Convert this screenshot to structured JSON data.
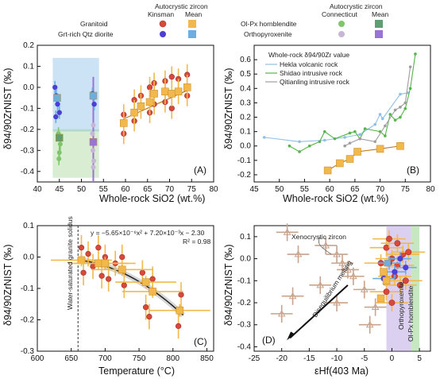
{
  "colors": {
    "granitoid_kinsman": "#d9493a",
    "granitoid_mean": "#f2b84b",
    "diorite_kinsman": "#4b3fd6",
    "diorite_mean": "#6aaee3",
    "olpx_connecticut": "#7fc56b",
    "olpx_mean": "#5f9e70",
    "opx_connecticut": "#c7b7d6",
    "opx_mean": "#9a73d6",
    "hekla": "#8fbfe6",
    "shidao": "#55b54b",
    "qitianling": "#9e9e9e",
    "fit": "#222222",
    "xenocryst": "#c9a38c"
  },
  "legend": {
    "heading_left": "Autocrystic zircon",
    "col_kinsman": "Kinsman",
    "col_mean": "Mean",
    "row_granitoid": "Granitoid",
    "row_diorite": "Grt-rich Qtz diorite",
    "heading_right": "Autocrystic zircon",
    "col_connecticut": "Connecticut",
    "col_mean2": "Mean",
    "row_olpx": "Ol-Px hornblendite",
    "row_opx": "Orthopyroxenite"
  },
  "chart_data": [
    {
      "panel": "A",
      "type": "scatter",
      "xlabel": "Whole-rock  SiO2 (wt.%)",
      "ylabel": "δ94/90ZrNIST (‰)",
      "xlim": [
        40,
        80
      ],
      "ylim": [
        -0.45,
        0.2
      ],
      "xticks": [
        40,
        45,
        50,
        55,
        60,
        65,
        70,
        75,
        80
      ],
      "yticks": [
        -0.4,
        -0.3,
        -0.2,
        -0.1,
        0.0,
        0.1,
        0.2
      ],
      "panel_label": "(A)",
      "granitoid_means": [
        {
          "x": 59.6,
          "y": -0.17
        },
        {
          "x": 62.0,
          "y": -0.12
        },
        {
          "x": 63.5,
          "y": -0.09
        },
        {
          "x": 65.5,
          "y": -0.07
        },
        {
          "x": 66.5,
          "y": -0.03
        },
        {
          "x": 69.0,
          "y": -0.02
        },
        {
          "x": 70.5,
          "y": -0.03
        },
        {
          "x": 72.0,
          "y": -0.02
        },
        {
          "x": 74.0,
          "y": 0.0
        }
      ],
      "granitoid_kinsman": [
        {
          "x": 59.6,
          "y": -0.22
        },
        {
          "x": 59.6,
          "y": -0.13
        },
        {
          "x": 62.0,
          "y": -0.16
        },
        {
          "x": 62.0,
          "y": -0.06
        },
        {
          "x": 63.5,
          "y": -0.04
        },
        {
          "x": 65.5,
          "y": 0.0
        },
        {
          "x": 65.5,
          "y": -0.12
        },
        {
          "x": 66.5,
          "y": 0.02
        },
        {
          "x": 66.5,
          "y": -0.08
        },
        {
          "x": 69.0,
          "y": 0.03
        },
        {
          "x": 69.0,
          "y": -0.07
        },
        {
          "x": 70.5,
          "y": 0.05
        },
        {
          "x": 70.5,
          "y": -0.1
        },
        {
          "x": 72.0,
          "y": 0.04
        },
        {
          "x": 74.0,
          "y": 0.06
        },
        {
          "x": 74.0,
          "y": -0.04
        }
      ],
      "diorite_means": [
        {
          "x": 44.5,
          "y": -0.05
        },
        {
          "x": 52.7,
          "y": -0.04
        }
      ],
      "diorite_kinsman": [
        {
          "x": 44.0,
          "y": 0.0
        },
        {
          "x": 44.3,
          "y": -0.04
        },
        {
          "x": 44.6,
          "y": -0.08
        },
        {
          "x": 45.0,
          "y": -0.12
        },
        {
          "x": 44.2,
          "y": -0.14
        },
        {
          "x": 52.5,
          "y": -0.03
        },
        {
          "x": 52.9,
          "y": -0.08
        }
      ],
      "olpx_means": [
        {
          "x": 45.0,
          "y": -0.24
        }
      ],
      "olpx_connecticut": [
        {
          "x": 44.8,
          "y": -0.22
        },
        {
          "x": 45.2,
          "y": -0.27
        },
        {
          "x": 45.0,
          "y": -0.31
        },
        {
          "x": 44.9,
          "y": -0.34
        }
      ],
      "opx_means": [
        {
          "x": 52.7,
          "y": -0.26
        }
      ],
      "opx_connecticut": [
        {
          "x": 52.5,
          "y": -0.22
        },
        {
          "x": 52.6,
          "y": -0.3
        },
        {
          "x": 52.8,
          "y": -0.35
        },
        {
          "x": 52.7,
          "y": -0.38
        },
        {
          "x": 52.7,
          "y": -0.18
        }
      ]
    },
    {
      "panel": "B",
      "type": "line",
      "xlabel": "Whole-rock  SiO2 (wt.%)",
      "ylabel": "δ94/90ZrNIST (‰)",
      "xlim": [
        45,
        80
      ],
      "ylim": [
        -0.25,
        0.7
      ],
      "xticks": [
        45,
        50,
        55,
        60,
        65,
        70,
        75,
        80
      ],
      "yticks": [
        -0.2,
        -0.1,
        0.0,
        0.1,
        0.2,
        0.3,
        0.4,
        0.5,
        0.6
      ],
      "panel_label": "(B)",
      "legend_title": "Whole-rock δ94/90Zr value",
      "series": [
        {
          "name": "Hekla volcanic rock",
          "x": [
            47,
            54,
            59,
            63,
            66,
            69,
            70,
            70.5,
            74,
            75.5
          ],
          "values": [
            0.06,
            0.03,
            0.04,
            0.06,
            0.08,
            0.15,
            0.22,
            0.19,
            0.36,
            0.37
          ]
        },
        {
          "name": "Shidao intrusive rock",
          "x": [
            52,
            54,
            56,
            58,
            59,
            61,
            64,
            65,
            66,
            67,
            70,
            71,
            72,
            73,
            74,
            75,
            76,
            77
          ],
          "values": [
            0.0,
            -0.04,
            0.0,
            0.03,
            0.1,
            0.05,
            0.09,
            0.1,
            0.05,
            0.12,
            0.1,
            0.07,
            0.22,
            0.18,
            0.2,
            0.26,
            0.4,
            0.64
          ]
        },
        {
          "name": "Qitianling intrusive rock",
          "x": [
            63,
            64,
            66,
            69,
            71,
            73,
            74,
            75,
            76
          ],
          "values": [
            0.0,
            0.02,
            0.05,
            0.03,
            0.14,
            0.25,
            0.27,
            0.3,
            0.55
          ]
        }
      ],
      "granitoid_means": [
        {
          "x": 59.6,
          "y": -0.17
        },
        {
          "x": 62.0,
          "y": -0.12
        },
        {
          "x": 64.0,
          "y": -0.09
        },
        {
          "x": 65.5,
          "y": -0.04
        },
        {
          "x": 70.0,
          "y": -0.02
        },
        {
          "x": 74.0,
          "y": 0.0
        }
      ]
    },
    {
      "panel": "C",
      "type": "scatter",
      "xlabel": "Temperature (°C)",
      "ylabel": "δ94/90ZrNIST (‰)",
      "xlim": [
        600,
        860
      ],
      "ylim": [
        -0.3,
        0.1
      ],
      "xticks": [
        600,
        650,
        700,
        750,
        800,
        850
      ],
      "yticks": [
        -0.3,
        -0.2,
        -0.1,
        0.0,
        0.1
      ],
      "panel_label": "(C)",
      "equation": "y = −5.65×10⁻⁶x² + 7.20×10⁻³x − 2.30",
      "r2": "R² = 0.98",
      "solidus_label": "Water-saturated granite solidus",
      "solidus_x": 660,
      "fit": {
        "a": -5.65e-06,
        "b": 0.0072,
        "c": -2.3,
        "x_range": [
          660,
          815
        ]
      },
      "means": [
        {
          "x": 665,
          "y": -0.01
        },
        {
          "x": 690,
          "y": -0.02
        },
        {
          "x": 700,
          "y": -0.02
        },
        {
          "x": 725,
          "y": -0.04
        },
        {
          "x": 760,
          "y": -0.08
        },
        {
          "x": 770,
          "y": -0.11
        },
        {
          "x": 810,
          "y": -0.17
        }
      ],
      "kinsman": [
        {
          "x": 665,
          "y": 0.03
        },
        {
          "x": 668,
          "y": -0.05
        },
        {
          "x": 675,
          "y": 0.01
        },
        {
          "x": 682,
          "y": -0.03
        },
        {
          "x": 690,
          "y": 0.03
        },
        {
          "x": 695,
          "y": -0.06
        },
        {
          "x": 700,
          "y": 0.0
        },
        {
          "x": 705,
          "y": -0.07
        },
        {
          "x": 715,
          "y": -0.02
        },
        {
          "x": 725,
          "y": 0.0
        },
        {
          "x": 728,
          "y": -0.09
        },
        {
          "x": 755,
          "y": -0.05
        },
        {
          "x": 760,
          "y": -0.16
        },
        {
          "x": 765,
          "y": -0.19
        },
        {
          "x": 770,
          "y": -0.07
        },
        {
          "x": 808,
          "y": -0.22
        },
        {
          "x": 812,
          "y": -0.12
        }
      ]
    },
    {
      "panel": "D",
      "type": "scatter",
      "xlabel": "εHf(403 Ma)",
      "ylabel": "δ94/90ZrNIST (‰)",
      "xlim": [
        -25,
        7
      ],
      "ylim": [
        -0.42,
        0.15
      ],
      "xticks": [
        -25,
        -20,
        -15,
        -10,
        -5,
        0,
        5
      ],
      "yticks": [
        -0.4,
        -0.3,
        -0.2,
        -0.1,
        0.0,
        0.1
      ],
      "panel_label": "(D)",
      "label_xeno": "Xenocrystic zircon",
      "label_diseq": "Disequilibrium melting",
      "label_opx": "Orthopyroxenite",
      "label_olpx": "Ol-Px hornblendite",
      "band_opx": [
        -1,
        3.5
      ],
      "band_olpx": [
        3.5,
        5
      ],
      "xenocrysts": [
        {
          "x": -19,
          "y": 0.12
        },
        {
          "x": -17,
          "y": 0.02
        },
        {
          "x": -12,
          "y": 0.06
        },
        {
          "x": -10,
          "y": 0.02
        },
        {
          "x": -9,
          "y": -0.02
        },
        {
          "x": -8,
          "y": -0.05
        },
        {
          "x": -7,
          "y": -0.08
        },
        {
          "x": -13,
          "y": -0.12
        },
        {
          "x": -18,
          "y": -0.17
        },
        {
          "x": -20,
          "y": -0.25
        },
        {
          "x": -10,
          "y": -0.2
        },
        {
          "x": -5,
          "y": -0.14
        },
        {
          "x": -3,
          "y": -0.22
        },
        {
          "x": -4,
          "y": -0.3
        }
      ],
      "granitoid": [
        {
          "x": -1,
          "y": 0.05
        },
        {
          "x": 0,
          "y": 0.0
        },
        {
          "x": 1,
          "y": -0.03
        },
        {
          "x": 2,
          "y": 0.02
        },
        {
          "x": -2,
          "y": -0.02
        },
        {
          "x": 0.5,
          "y": -0.08
        },
        {
          "x": 1.5,
          "y": -0.12
        },
        {
          "x": -1,
          "y": -0.15
        },
        {
          "x": 2.5,
          "y": -0.1
        },
        {
          "x": 0,
          "y": -0.2
        },
        {
          "x": 3,
          "y": 0.03
        },
        {
          "x": -0.5,
          "y": 0.09
        },
        {
          "x": 1,
          "y": 0.07
        }
      ],
      "diorite": [
        {
          "x": -0.5,
          "y": -0.02
        },
        {
          "x": 0.5,
          "y": -0.06
        },
        {
          "x": 1.5,
          "y": 0.0
        },
        {
          "x": 2.5,
          "y": -0.04
        },
        {
          "x": -1.5,
          "y": -0.09
        }
      ],
      "means": [
        {
          "x": -1.5,
          "y": -0.06
        },
        {
          "x": -1.0,
          "y": -0.1
        },
        {
          "x": -2.0,
          "y": -0.18
        }
      ],
      "diorite_means": [
        {
          "x": -0.8,
          "y": -0.02
        }
      ]
    }
  ]
}
